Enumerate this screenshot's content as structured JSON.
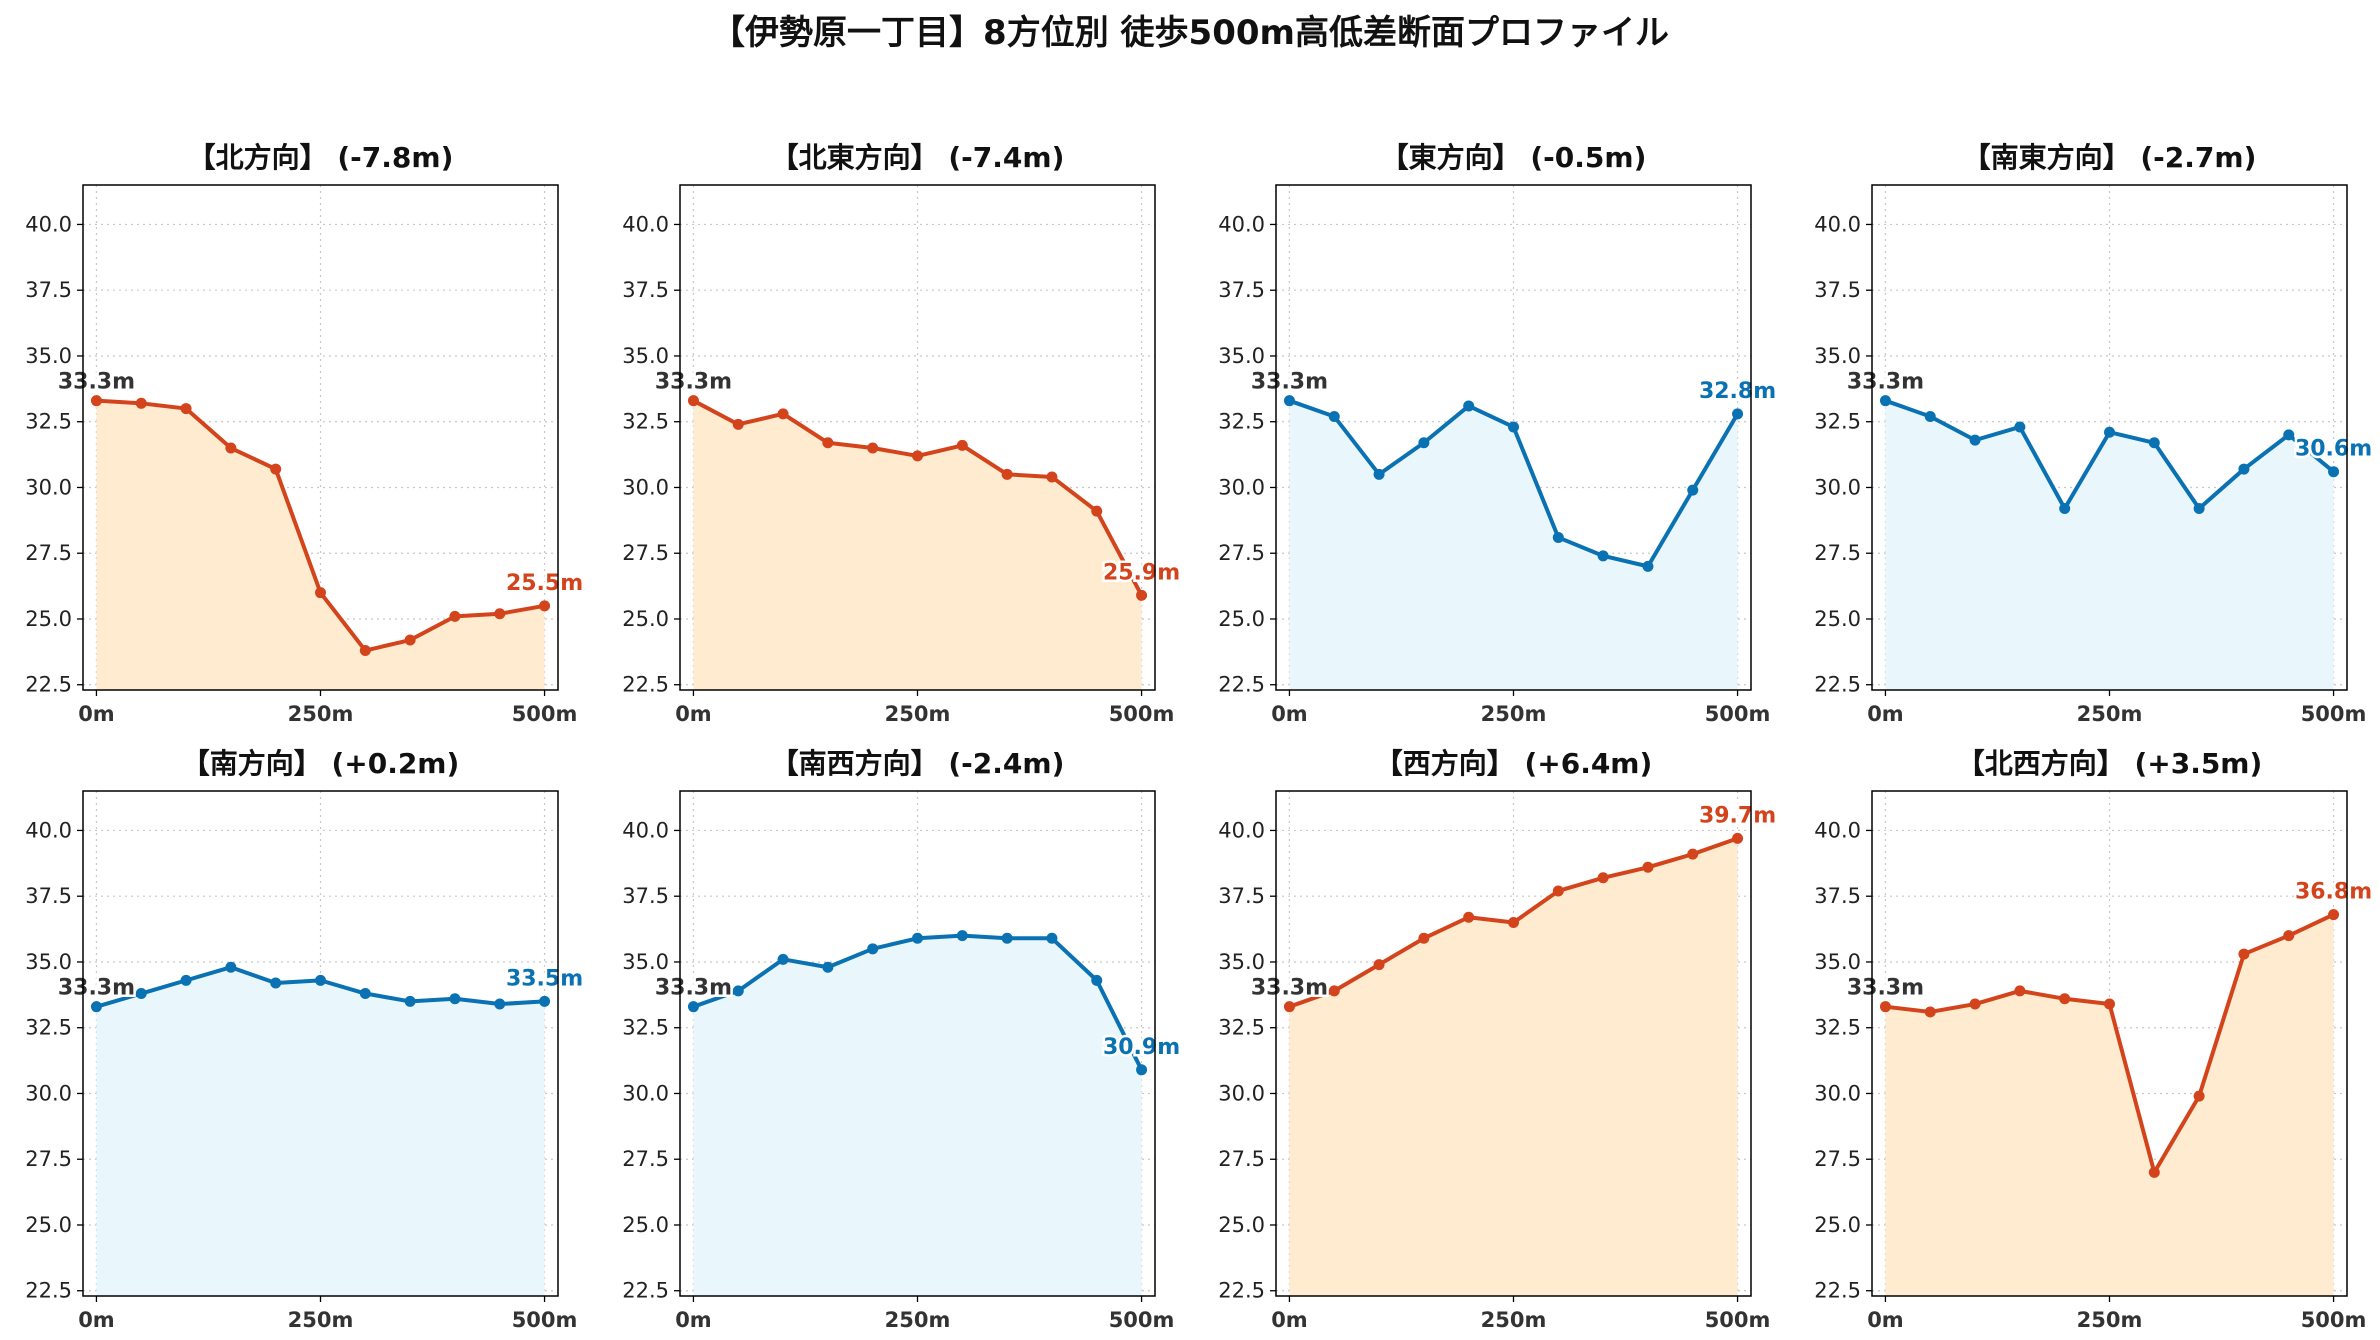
{
  "title": "【伊勢原一丁目】8方位別 徒歩500m高低差断面プロファイル",
  "colors": {
    "down_line": "#D4441C",
    "down_fill": "#FFEBCF",
    "up_line": "#0A72B2",
    "up_fill": "#E9F6FC"
  },
  "chart_data": [
    {
      "type": "area",
      "title": "【北方向】 (-7.8m)",
      "trend": "down",
      "x": [
        0,
        50,
        100,
        150,
        200,
        250,
        300,
        350,
        400,
        450,
        500
      ],
      "values": [
        33.3,
        33.2,
        33.0,
        31.5,
        30.7,
        26.0,
        23.8,
        24.2,
        25.1,
        25.2,
        25.5
      ],
      "start_label": "33.3m",
      "end_label": "25.5m",
      "xticks": [
        "0m",
        "250m",
        "500m"
      ],
      "yticks": [
        "22.5",
        "25.0",
        "27.5",
        "30.0",
        "32.5",
        "35.0",
        "37.5",
        "40.0"
      ],
      "ylim": [
        22.3,
        41.5
      ],
      "xlim": [
        -15,
        515
      ],
      "grid": true
    },
    {
      "type": "area",
      "title": "【北東方向】 (-7.4m)",
      "trend": "down",
      "x": [
        0,
        50,
        100,
        150,
        200,
        250,
        300,
        350,
        400,
        450,
        500
      ],
      "values": [
        33.3,
        32.4,
        32.8,
        31.7,
        31.5,
        31.2,
        31.6,
        30.5,
        30.4,
        29.1,
        25.9
      ],
      "start_label": "33.3m",
      "end_label": "25.9m",
      "xticks": [
        "0m",
        "250m",
        "500m"
      ],
      "yticks": [
        "22.5",
        "25.0",
        "27.5",
        "30.0",
        "32.5",
        "35.0",
        "37.5",
        "40.0"
      ],
      "ylim": [
        22.3,
        41.5
      ],
      "xlim": [
        -15,
        515
      ],
      "grid": true
    },
    {
      "type": "area",
      "title": "【東方向】 (-0.5m)",
      "trend": "up",
      "x": [
        0,
        50,
        100,
        150,
        200,
        250,
        300,
        350,
        400,
        450,
        500
      ],
      "values": [
        33.3,
        32.7,
        30.5,
        31.7,
        33.1,
        32.3,
        28.1,
        27.4,
        27.0,
        29.9,
        32.8
      ],
      "start_label": "33.3m",
      "end_label": "32.8m",
      "xticks": [
        "0m",
        "250m",
        "500m"
      ],
      "yticks": [
        "22.5",
        "25.0",
        "27.5",
        "30.0",
        "32.5",
        "35.0",
        "37.5",
        "40.0"
      ],
      "ylim": [
        22.3,
        41.5
      ],
      "xlim": [
        -15,
        515
      ],
      "grid": true
    },
    {
      "type": "area",
      "title": "【南東方向】 (-2.7m)",
      "trend": "up",
      "x": [
        0,
        50,
        100,
        150,
        200,
        250,
        300,
        350,
        400,
        450,
        500
      ],
      "values": [
        33.3,
        32.7,
        31.8,
        32.3,
        29.2,
        32.1,
        31.7,
        29.2,
        30.7,
        32.0,
        30.6
      ],
      "start_label": "33.3m",
      "end_label": "30.6m",
      "xticks": [
        "0m",
        "250m",
        "500m"
      ],
      "yticks": [
        "22.5",
        "25.0",
        "27.5",
        "30.0",
        "32.5",
        "35.0",
        "37.5",
        "40.0"
      ],
      "ylim": [
        22.3,
        41.5
      ],
      "xlim": [
        -15,
        515
      ],
      "grid": true
    },
    {
      "type": "area",
      "title": "【南方向】 (+0.2m)",
      "trend": "up",
      "x": [
        0,
        50,
        100,
        150,
        200,
        250,
        300,
        350,
        400,
        450,
        500
      ],
      "values": [
        33.3,
        33.8,
        34.3,
        34.8,
        34.2,
        34.3,
        33.8,
        33.5,
        33.6,
        33.4,
        33.5
      ],
      "start_label": "33.3m",
      "end_label": "33.5m",
      "xticks": [
        "0m",
        "250m",
        "500m"
      ],
      "yticks": [
        "22.5",
        "25.0",
        "27.5",
        "30.0",
        "32.5",
        "35.0",
        "37.5",
        "40.0"
      ],
      "ylim": [
        22.3,
        41.5
      ],
      "xlim": [
        -15,
        515
      ],
      "grid": true
    },
    {
      "type": "area",
      "title": "【南西方向】 (-2.4m)",
      "trend": "up",
      "x": [
        0,
        50,
        100,
        150,
        200,
        250,
        300,
        350,
        400,
        450,
        500
      ],
      "values": [
        33.3,
        33.9,
        35.1,
        34.8,
        35.5,
        35.9,
        36.0,
        35.9,
        35.9,
        34.3,
        30.9
      ],
      "start_label": "33.3m",
      "end_label": "30.9m",
      "xticks": [
        "0m",
        "250m",
        "500m"
      ],
      "yticks": [
        "22.5",
        "25.0",
        "27.5",
        "30.0",
        "32.5",
        "35.0",
        "37.5",
        "40.0"
      ],
      "ylim": [
        22.3,
        41.5
      ],
      "xlim": [
        -15,
        515
      ],
      "grid": true
    },
    {
      "type": "area",
      "title": "【西方向】 (+6.4m)",
      "trend": "down",
      "x": [
        0,
        50,
        100,
        150,
        200,
        250,
        300,
        350,
        400,
        450,
        500
      ],
      "values": [
        33.3,
        33.9,
        34.9,
        35.9,
        36.7,
        36.5,
        37.7,
        38.2,
        38.6,
        39.1,
        39.7
      ],
      "start_label": "33.3m",
      "end_label": "39.7m",
      "xticks": [
        "0m",
        "250m",
        "500m"
      ],
      "yticks": [
        "22.5",
        "25.0",
        "27.5",
        "30.0",
        "32.5",
        "35.0",
        "37.5",
        "40.0"
      ],
      "ylim": [
        22.3,
        41.5
      ],
      "xlim": [
        -15,
        515
      ],
      "grid": true
    },
    {
      "type": "area",
      "title": "【北西方向】 (+3.5m)",
      "trend": "down",
      "x": [
        0,
        50,
        100,
        150,
        200,
        250,
        300,
        350,
        400,
        450,
        500
      ],
      "values": [
        33.3,
        33.1,
        33.4,
        33.9,
        33.6,
        33.4,
        27.0,
        29.9,
        35.3,
        36.0,
        36.8
      ],
      "start_label": "33.3m",
      "end_label": "36.8m",
      "xticks": [
        "0m",
        "250m",
        "500m"
      ],
      "yticks": [
        "22.5",
        "25.0",
        "27.5",
        "30.0",
        "32.5",
        "35.0",
        "37.5",
        "40.0"
      ],
      "ylim": [
        22.3,
        41.5
      ],
      "xlim": [
        -15,
        515
      ],
      "grid": true
    }
  ]
}
